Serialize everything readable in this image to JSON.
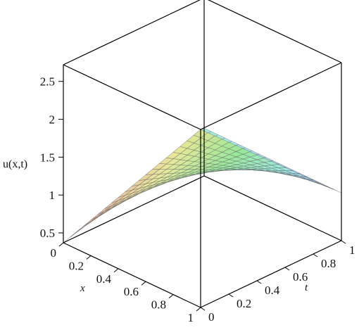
{
  "chart_data": {
    "type": "surface3d",
    "function": "u(x,t)",
    "zlabel": "u(x,t)",
    "xlabel": "x",
    "ylabel": "t",
    "xlim": [
      0,
      1
    ],
    "tlim": [
      0,
      1
    ],
    "zlim": [
      0.37,
      2.72
    ],
    "x_ticks": [
      "0",
      "0.2",
      "0.4",
      "0.6",
      "0.8",
      "1"
    ],
    "t_ticks": [
      "0",
      "0.2",
      "0.4",
      "0.6",
      "0.8",
      "1"
    ],
    "z_ticks": [
      "0.5",
      "1",
      "1.5",
      "2",
      "2.5"
    ],
    "corner_values": [
      {
        "x": 0,
        "t": 0,
        "u": 0.37
      },
      {
        "x": 1,
        "t": 0,
        "u": 2.72
      },
      {
        "x": 0,
        "t": 1,
        "u": 1.0
      },
      {
        "x": 1,
        "t": 1,
        "u": 1.0
      }
    ],
    "color_scheme": "rainbow",
    "grid_lines": 21
  }
}
